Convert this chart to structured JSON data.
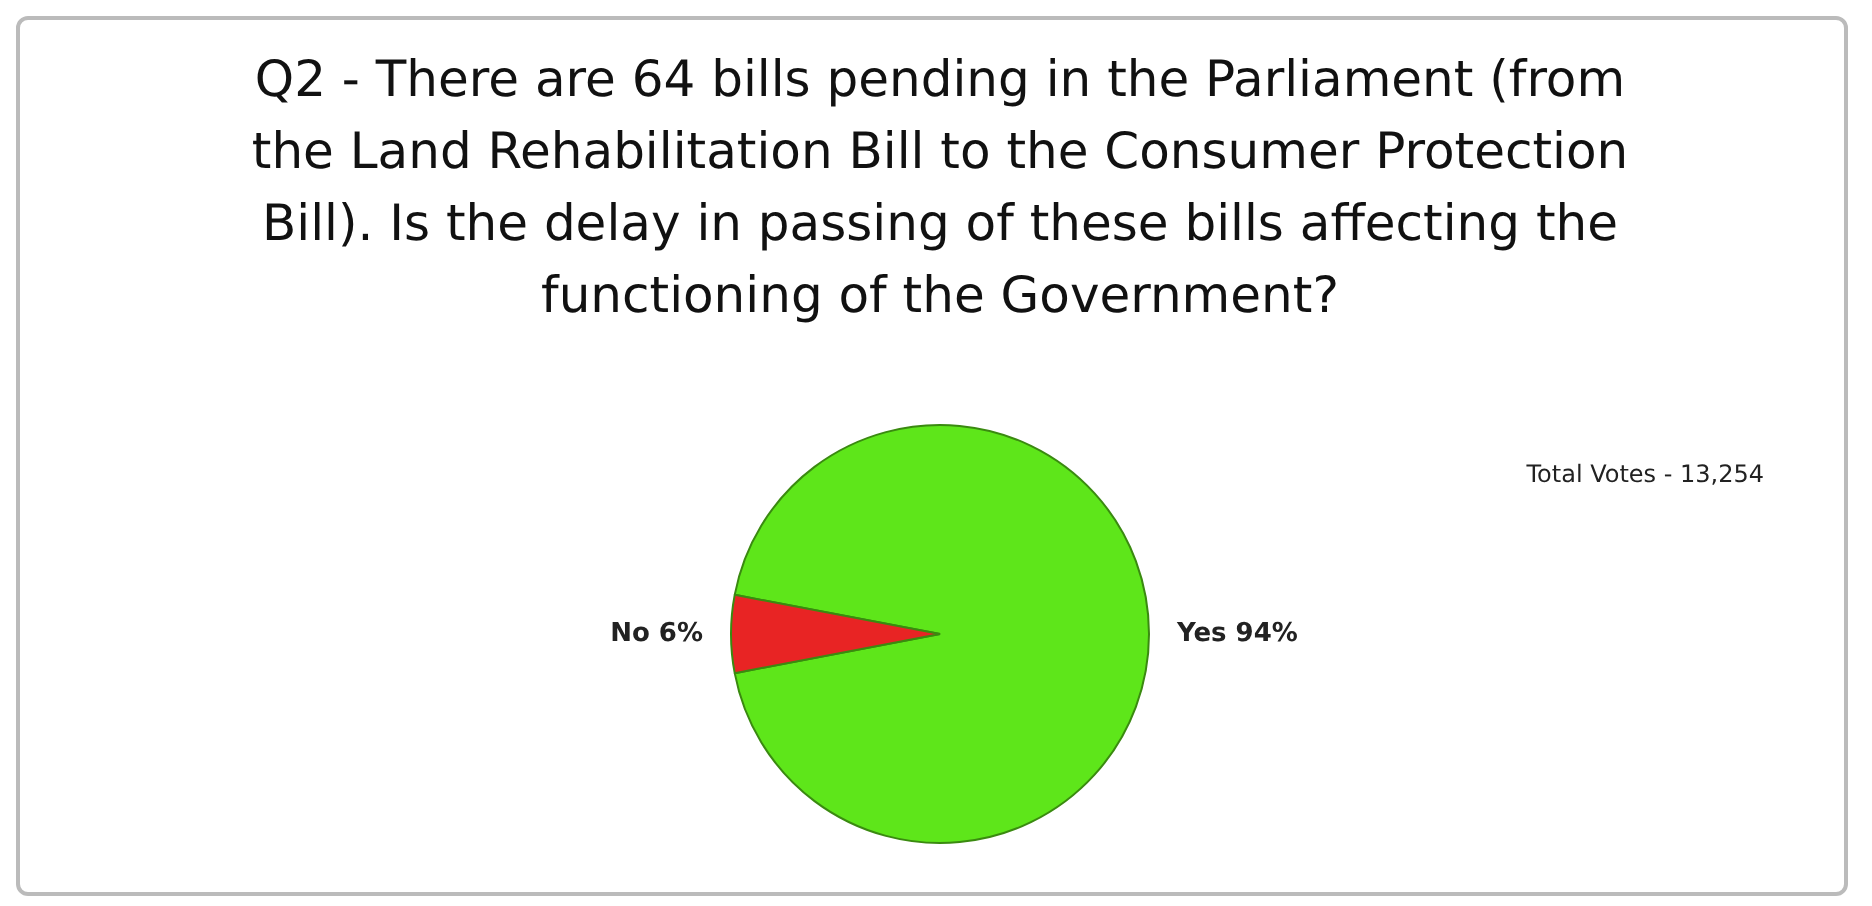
{
  "chart_data": {
    "type": "pie",
    "title": "Q2 - There are 64 bills pending in the Parliament (from the Land Rehabilitation Bill to the Consumer Protection Bill). Is the delay in passing of these bills affecting the functioning of the Government?",
    "categories": [
      "Yes",
      "No"
    ],
    "values": [
      94,
      6
    ],
    "value_labels": [
      "94%",
      "6%"
    ],
    "colors": [
      "#5ee61a",
      "#e82424"
    ],
    "annotations": [
      "Total Votes - 13,254"
    ],
    "legend": false
  }
}
